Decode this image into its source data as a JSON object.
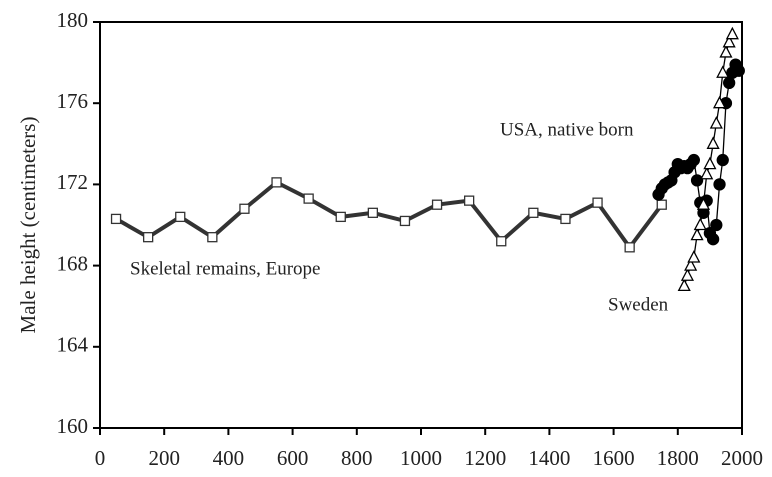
{
  "chart_data": {
    "type": "line",
    "y_label": "Male height (centimeters)",
    "xlim": [
      0,
      2000
    ],
    "xticks": [
      0,
      200,
      400,
      600,
      800,
      1000,
      1200,
      1400,
      1600,
      1800,
      2000
    ],
    "ylim": [
      160,
      180
    ],
    "yticks": [
      160,
      164,
      168,
      172,
      176,
      180
    ],
    "grid": false,
    "annotations": [
      "USA, native born",
      "Skeletal remains, Europe",
      "Sweden"
    ],
    "series": [
      {
        "name": "Skeletal remains, Europe",
        "color": "#333333",
        "marker": "square",
        "x": [
          50,
          150,
          250,
          350,
          450,
          550,
          650,
          750,
          850,
          950,
          1050,
          1150,
          1250,
          1350,
          1450,
          1550,
          1650,
          1750
        ],
        "values": [
          170.3,
          169.4,
          170.4,
          169.4,
          170.8,
          172.1,
          171.3,
          170.4,
          170.6,
          170.2,
          171.0,
          171.2,
          169.2,
          170.6,
          170.3,
          171.1,
          168.9,
          171.0
        ]
      },
      {
        "name": "USA, native born",
        "color": "#000000",
        "marker": "circle",
        "x": [
          1740,
          1750,
          1760,
          1770,
          1780,
          1790,
          1800,
          1810,
          1820,
          1830,
          1840,
          1850,
          1860,
          1870,
          1880,
          1890,
          1900,
          1910,
          1920,
          1930,
          1940,
          1950,
          1960,
          1970,
          1980,
          1990
        ],
        "values": [
          171.5,
          171.8,
          172.0,
          172.1,
          172.2,
          172.6,
          173.0,
          172.8,
          172.9,
          172.8,
          173.0,
          173.2,
          172.2,
          171.1,
          170.6,
          171.2,
          169.6,
          169.3,
          170.0,
          172.0,
          173.2,
          176.0,
          177.0,
          177.5,
          177.9,
          177.6
        ]
      },
      {
        "name": "Sweden",
        "color": "#000000",
        "marker": "triangle",
        "x": [
          1820,
          1830,
          1840,
          1850,
          1860,
          1870,
          1880,
          1890,
          1900,
          1910,
          1920,
          1930,
          1940,
          1950,
          1960,
          1970
        ],
        "values": [
          167.0,
          167.5,
          168.0,
          168.4,
          169.5,
          170.0,
          171.0,
          172.5,
          173.0,
          174.0,
          175.0,
          176.0,
          177.5,
          178.5,
          179.0,
          179.4
        ]
      }
    ]
  }
}
